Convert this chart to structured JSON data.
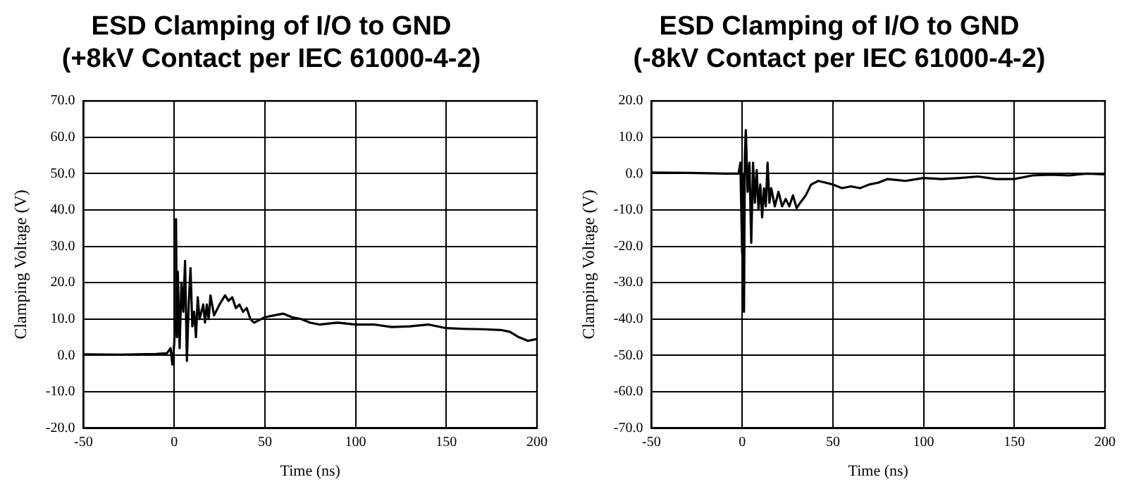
{
  "chart_data": [
    {
      "type": "line",
      "title": "ESD Clamping of I/O to GND\n(+8kV Contact per IEC 61000-4-2)",
      "xlabel": "Time (ns)",
      "ylabel": "Clamping Voltage (V)",
      "xlim": [
        -50,
        200
      ],
      "xticks": [
        -50,
        0,
        50,
        100,
        150,
        200
      ],
      "ylim": [
        -20,
        70
      ],
      "yticks": [
        {
          "value": -20,
          "label": "-20.0"
        },
        {
          "value": -10,
          "label": "-10.0"
        },
        {
          "value": 0,
          "label": "0.0"
        },
        {
          "value": 10,
          "label": "10.0"
        },
        {
          "value": 20,
          "label": "20.0"
        },
        {
          "value": 30,
          "label": "30.0"
        },
        {
          "value": 40,
          "label": "40.0"
        },
        {
          "value": 50,
          "label": "50.0"
        },
        {
          "value": 60,
          "label": "60.0"
        },
        {
          "value": 70,
          "label": "70.0"
        }
      ],
      "grid": true,
      "legend": false,
      "marker": "none",
      "line_style": "solid",
      "series": [
        {
          "color": "#000000",
          "x": [
            -50,
            -30,
            -10,
            -4,
            -2,
            -1,
            0,
            0.5,
            1,
            1.5,
            2,
            3,
            4,
            5,
            6,
            7,
            8,
            9,
            10,
            11,
            12,
            13,
            14,
            16,
            17,
            18,
            19,
            20,
            22,
            25,
            28,
            30,
            32,
            34,
            36,
            38,
            40,
            42,
            44,
            46,
            50,
            55,
            60,
            65,
            70,
            75,
            80,
            90,
            100,
            110,
            120,
            130,
            140,
            150,
            160,
            170,
            180,
            185,
            190,
            195,
            200
          ],
          "values": [
            0.3,
            0.2,
            0.4,
            0.6,
            2,
            -2.5,
            3,
            10,
            37.5,
            5,
            23,
            2,
            20,
            12,
            26,
            -1.5,
            14,
            24,
            8,
            12,
            5,
            16,
            10,
            14,
            9,
            14,
            10,
            16.5,
            11,
            14,
            16.5,
            15,
            16,
            13,
            14,
            12,
            13,
            10,
            9,
            9.5,
            10.5,
            11,
            11.5,
            10.5,
            10,
            9,
            8.5,
            9,
            8.5,
            8.5,
            7.8,
            8,
            8.5,
            7.5,
            7.3,
            7.2,
            7,
            6.5,
            5,
            4,
            4.5
          ]
        }
      ]
    },
    {
      "type": "line",
      "title": "ESD Clamping of I/O to GND\n(-8kV Contact per IEC 61000-4-2)",
      "xlabel": "Time (ns)",
      "ylabel": "Clamping Voltage (V)",
      "xlim": [
        -50,
        200
      ],
      "xticks": [
        -50,
        0,
        50,
        100,
        150,
        200
      ],
      "ylim": [
        -70,
        20
      ],
      "yticks": [
        {
          "value": -70,
          "label": "-70.0"
        },
        {
          "value": -60,
          "label": "-60.0"
        },
        {
          "value": -50,
          "label": "-50.0"
        },
        {
          "value": -40,
          "label": "-40.0"
        },
        {
          "value": -30,
          "label": "-30.0"
        },
        {
          "value": -20,
          "label": "-20.0"
        },
        {
          "value": -10,
          "label": "-10.0"
        },
        {
          "value": 0,
          "label": "0.0"
        },
        {
          "value": 10,
          "label": "10.0"
        },
        {
          "value": 20,
          "label": "20.0"
        }
      ],
      "grid": true,
      "legend": false,
      "marker": "none",
      "line_style": "solid",
      "series": [
        {
          "color": "#000000",
          "x": [
            -50,
            -30,
            -10,
            -2,
            -1,
            0,
            0.5,
            1,
            1.5,
            2,
            3,
            4,
            5,
            6,
            7,
            8,
            9,
            10,
            11,
            12,
            13,
            14,
            15,
            16,
            18,
            20,
            22,
            24,
            26,
            28,
            30,
            32,
            35,
            38,
            42,
            46,
            50,
            55,
            60,
            65,
            70,
            75,
            80,
            90,
            100,
            110,
            120,
            130,
            140,
            150,
            160,
            170,
            180,
            190,
            200
          ],
          "values": [
            0.3,
            0.2,
            0,
            0,
            3,
            -22,
            0,
            -38,
            5,
            12,
            -5,
            3,
            -19,
            3,
            -8,
            1,
            -10,
            -3,
            -12,
            -4,
            -9,
            3,
            -8,
            -4,
            -9,
            -5,
            -9,
            -7,
            -9,
            -6,
            -9.5,
            -8,
            -6,
            -3,
            -2,
            -2.5,
            -3,
            -4,
            -3.5,
            -4,
            -3,
            -2.5,
            -1.5,
            -2,
            -1.2,
            -1.5,
            -1.2,
            -0.8,
            -1.5,
            -1.5,
            -0.5,
            -0.3,
            -0.5,
            0,
            -0.2
          ]
        }
      ]
    }
  ]
}
